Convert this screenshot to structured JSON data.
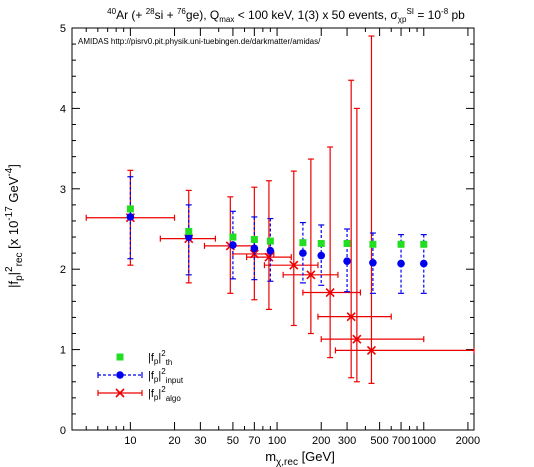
{
  "chart_data": {
    "type": "scatter",
    "title_html": [
      "",
      "40",
      "Ar (+ ",
      "28",
      "si + ",
      "76",
      "ge), Q",
      "max",
      " < 100 keV, 1(3) x 50 events, σ",
      "χp",
      "SI",
      " = 10",
      "-8",
      " pb"
    ],
    "annotation": "AMIDAS   http://pisrv0.pit.physik.uni-tuebingen.de/darkmatter/amidas/",
    "xlabel": {
      "base": "m",
      "sub": "χ,rec",
      "after": " [GeV]"
    },
    "ylabel": {
      "p1": "|f",
      "sub1": "p",
      "p2": "|",
      "sup1": "2",
      "sub2": "rec",
      "p3": "  [x 10",
      "sup2": "-17",
      "p4": " GeV",
      "sup3": "-4",
      "p5": "]"
    },
    "x_scale": "log",
    "xlim": [
      4,
      2200
    ],
    "ylim": [
      0,
      5
    ],
    "x_ticks": [
      10,
      20,
      30,
      50,
      70,
      100,
      200,
      300,
      500,
      700,
      1000,
      2000
    ],
    "x_tick_labels": [
      "10",
      "20",
      "30",
      "50",
      "70",
      "100",
      "200",
      "300",
      "500",
      "700",
      "1000",
      "2000"
    ],
    "y_ticks": [
      0,
      1,
      2,
      3,
      4,
      5
    ],
    "y_tick_labels": [
      "0",
      "1",
      "2",
      "3",
      "4",
      "5"
    ],
    "legend_position": "bottom-left",
    "legend": [
      {
        "key": "th",
        "base": "|f",
        "sub": "p",
        "mid": "|",
        "sup": "2",
        "sub2": "th"
      },
      {
        "key": "input",
        "base": "|f",
        "sub": "p",
        "mid": "|",
        "sup": "2",
        "sub2": "input"
      },
      {
        "key": "algo",
        "base": "|f",
        "sub": "p",
        "mid": "|",
        "sup": "2",
        "sub2": "algo"
      }
    ],
    "series": [
      {
        "key": "th",
        "marker": "square",
        "color": "#22dd22",
        "points": [
          {
            "x": 10,
            "y": 2.75
          },
          {
            "x": 25,
            "y": 2.47
          },
          {
            "x": 50,
            "y": 2.4
          },
          {
            "x": 70,
            "y": 2.37
          },
          {
            "x": 90,
            "y": 2.35
          },
          {
            "x": 150,
            "y": 2.33
          },
          {
            "x": 200,
            "y": 2.32
          },
          {
            "x": 300,
            "y": 2.32
          },
          {
            "x": 450,
            "y": 2.31
          },
          {
            "x": 700,
            "y": 2.31
          },
          {
            "x": 1000,
            "y": 2.31
          }
        ]
      },
      {
        "key": "input",
        "marker": "circle",
        "color": "#0000ee",
        "points": [
          {
            "x": 10,
            "y": 2.65,
            "ylo": 2.13,
            "yhi": 3.15
          },
          {
            "x": 25,
            "y": 2.4,
            "ylo": 1.93,
            "yhi": 2.8
          },
          {
            "x": 50,
            "y": 2.3,
            "ylo": 1.88,
            "yhi": 2.72
          },
          {
            "x": 70,
            "y": 2.26,
            "ylo": 1.87,
            "yhi": 2.65
          },
          {
            "x": 90,
            "y": 2.23,
            "ylo": 1.85,
            "yhi": 2.63
          },
          {
            "x": 150,
            "y": 2.2,
            "ylo": 1.83,
            "yhi": 2.58
          },
          {
            "x": 200,
            "y": 2.17,
            "ylo": 1.8,
            "yhi": 2.55
          },
          {
            "x": 300,
            "y": 2.1,
            "ylo": 1.72,
            "yhi": 2.5
          },
          {
            "x": 450,
            "y": 2.08,
            "ylo": 1.7,
            "yhi": 2.45
          },
          {
            "x": 700,
            "y": 2.07,
            "ylo": 1.7,
            "yhi": 2.43
          },
          {
            "x": 1000,
            "y": 2.07,
            "ylo": 1.7,
            "yhi": 2.43
          }
        ]
      },
      {
        "key": "algo",
        "marker": "cross",
        "color": "#ee0000",
        "points": [
          {
            "x": 10,
            "y": 2.64,
            "xlo": 5,
            "xhi": 20,
            "ylo": 2.05,
            "yhi": 3.23
          },
          {
            "x": 25,
            "y": 2.38,
            "xlo": 16,
            "xhi": 38,
            "ylo": 1.83,
            "yhi": 2.98
          },
          {
            "x": 48,
            "y": 2.29,
            "xlo": 32,
            "xhi": 70,
            "ylo": 1.7,
            "yhi": 2.9
          },
          {
            "x": 70,
            "y": 2.19,
            "xlo": 50,
            "xhi": 95,
            "ylo": 1.62,
            "yhi": 3.02
          },
          {
            "x": 88,
            "y": 2.15,
            "xlo": 62,
            "xhi": 125,
            "ylo": 1.5,
            "yhi": 3.1
          },
          {
            "x": 130,
            "y": 2.05,
            "xlo": 82,
            "xhi": 190,
            "ylo": 1.3,
            "yhi": 3.22
          },
          {
            "x": 170,
            "y": 1.93,
            "xlo": 110,
            "xhi": 260,
            "ylo": 1.2,
            "yhi": 3.37
          },
          {
            "x": 230,
            "y": 1.71,
            "xlo": 150,
            "xhi": 370,
            "ylo": 0.9,
            "yhi": 3.52
          },
          {
            "x": 320,
            "y": 1.41,
            "xlo": 190,
            "xhi": 600,
            "ylo": 0.65,
            "yhi": 4.35
          },
          {
            "x": 350,
            "y": 1.13,
            "xlo": 200,
            "xhi": 1000,
            "ylo": 0.6,
            "yhi": 4.0
          },
          {
            "x": 440,
            "y": 0.99,
            "xlo": 250,
            "xhi": 2200,
            "ylo": 0.58,
            "yhi": 4.9
          }
        ]
      }
    ]
  }
}
